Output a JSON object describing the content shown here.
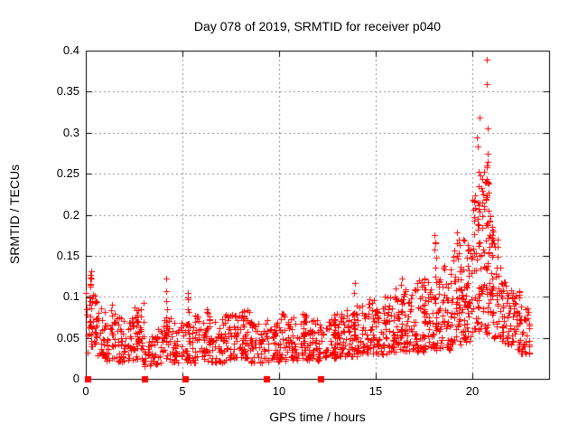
{
  "figure": {
    "title": "Day 078 of 2019, SRMTID for receiver p040",
    "xlabel": "GPS time / hours",
    "ylabel": "SRMTID / TECUs"
  },
  "chart_data": {
    "type": "scatter",
    "title": "Day 078 of 2019, SRMTID for receiver p040",
    "xlabel": "GPS time / hours",
    "ylabel": "SRMTID / TECUs",
    "xlim": [
      0,
      24
    ],
    "ylim": [
      0,
      0.4
    ],
    "xticks": [
      0,
      5,
      10,
      15,
      20
    ],
    "xtick_labels": [
      "0",
      "5",
      "10",
      "15",
      "20"
    ],
    "yticks": [
      0,
      0.05,
      0.1,
      0.15,
      0.2,
      0.25,
      0.3,
      0.35,
      0.4
    ],
    "ytick_labels": [
      "0",
      "0.05",
      "0.1",
      "0.15",
      "0.2",
      "0.25",
      "0.3",
      "0.35",
      "0.4"
    ],
    "grid": true,
    "legend": "none",
    "background_color": "#ffffff",
    "axis_color": "#000000",
    "grid_color": "#8c8c8c",
    "marker": {
      "shape": "plus",
      "color": "#ff0000",
      "size": 7
    },
    "zero_marker": {
      "shape": "filled-square",
      "color": "#ff0000",
      "size": 7
    },
    "seed": 2019078,
    "zero_points": [
      0.09,
      3.04,
      5.14,
      9.35,
      12.15
    ],
    "band_bins": [
      [
        0.0,
        25,
        0.03,
        0.105
      ],
      [
        0.5,
        30,
        0.025,
        0.095
      ],
      [
        1.0,
        28,
        0.022,
        0.07
      ],
      [
        1.5,
        30,
        0.02,
        0.08
      ],
      [
        2.0,
        30,
        0.022,
        0.075
      ],
      [
        2.5,
        32,
        0.02,
        0.095
      ],
      [
        3.0,
        25,
        0.015,
        0.06
      ],
      [
        3.5,
        25,
        0.018,
        0.065
      ],
      [
        4.0,
        28,
        0.02,
        0.075
      ],
      [
        4.5,
        26,
        0.02,
        0.07
      ],
      [
        5.0,
        26,
        0.018,
        0.07
      ],
      [
        5.5,
        28,
        0.02,
        0.08
      ],
      [
        6.0,
        30,
        0.022,
        0.085
      ],
      [
        6.5,
        28,
        0.02,
        0.075
      ],
      [
        7.0,
        30,
        0.02,
        0.08
      ],
      [
        7.5,
        30,
        0.022,
        0.08
      ],
      [
        8.0,
        32,
        0.022,
        0.09
      ],
      [
        8.5,
        28,
        0.02,
        0.07
      ],
      [
        9.0,
        28,
        0.02,
        0.075
      ],
      [
        9.5,
        28,
        0.02,
        0.07
      ],
      [
        10.0,
        30,
        0.022,
        0.08
      ],
      [
        10.5,
        30,
        0.022,
        0.075
      ],
      [
        11.0,
        30,
        0.022,
        0.08
      ],
      [
        11.5,
        30,
        0.022,
        0.075
      ],
      [
        12.0,
        30,
        0.022,
        0.07
      ],
      [
        12.5,
        32,
        0.025,
        0.08
      ],
      [
        13.0,
        32,
        0.025,
        0.08
      ],
      [
        13.5,
        32,
        0.025,
        0.085
      ],
      [
        14.0,
        34,
        0.028,
        0.09
      ],
      [
        14.5,
        34,
        0.03,
        0.1
      ],
      [
        15.0,
        34,
        0.03,
        0.095
      ],
      [
        15.5,
        36,
        0.03,
        0.1
      ],
      [
        16.0,
        36,
        0.032,
        0.115
      ],
      [
        16.5,
        36,
        0.032,
        0.11
      ],
      [
        17.0,
        38,
        0.032,
        0.12
      ],
      [
        17.5,
        38,
        0.035,
        0.13
      ],
      [
        18.0,
        38,
        0.035,
        0.125
      ],
      [
        18.5,
        38,
        0.035,
        0.14
      ],
      [
        19.0,
        38,
        0.04,
        0.175
      ],
      [
        19.5,
        40,
        0.045,
        0.17
      ],
      [
        20.0,
        42,
        0.05,
        0.23
      ],
      [
        20.5,
        44,
        0.055,
        0.26
      ],
      [
        21.0,
        40,
        0.05,
        0.185
      ],
      [
        21.5,
        38,
        0.04,
        0.12
      ],
      [
        22.0,
        38,
        0.035,
        0.11
      ],
      [
        22.5,
        36,
        0.03,
        0.09
      ]
    ],
    "clusters": [
      [
        0.25,
        0.08,
        10,
        0.06,
        0.132
      ],
      [
        0.55,
        0.06,
        8,
        0.05,
        0.105
      ],
      [
        1.35,
        0.05,
        7,
        0.05,
        0.095
      ],
      [
        2.65,
        0.1,
        12,
        0.04,
        0.1
      ],
      [
        4.2,
        0.06,
        9,
        0.04,
        0.122
      ],
      [
        5.3,
        0.05,
        7,
        0.04,
        0.105
      ],
      [
        6.4,
        0.06,
        8,
        0.04,
        0.092
      ],
      [
        8.2,
        0.06,
        8,
        0.04,
        0.09
      ],
      [
        11.3,
        0.06,
        8,
        0.04,
        0.085
      ],
      [
        12.9,
        0.05,
        7,
        0.04,
        0.085
      ],
      [
        13.9,
        0.06,
        8,
        0.05,
        0.117
      ],
      [
        16.35,
        0.07,
        9,
        0.05,
        0.125
      ],
      [
        17.55,
        0.07,
        9,
        0.05,
        0.135
      ],
      [
        18.1,
        0.06,
        8,
        0.06,
        0.178
      ],
      [
        19.3,
        0.07,
        9,
        0.06,
        0.18
      ],
      [
        19.8,
        0.08,
        12,
        0.05,
        0.17
      ],
      [
        20.35,
        0.08,
        14,
        0.06,
        0.25
      ],
      [
        20.8,
        0.08,
        16,
        0.06,
        0.27
      ],
      [
        21.05,
        0.06,
        10,
        0.06,
        0.185
      ]
    ],
    "outliers": [
      [
        20.75,
        0.389
      ],
      [
        20.79,
        0.359
      ],
      [
        20.4,
        0.318
      ],
      [
        20.84,
        0.305
      ],
      [
        20.28,
        0.294
      ],
      [
        20.3,
        0.283
      ],
      [
        20.84,
        0.274
      ],
      [
        20.84,
        0.265
      ],
      [
        20.35,
        0.252
      ],
      [
        20.45,
        0.248
      ],
      [
        20.55,
        0.244
      ],
      [
        20.62,
        0.252
      ],
      [
        20.7,
        0.24
      ],
      [
        20.5,
        0.232
      ],
      [
        20.58,
        0.225
      ],
      [
        20.75,
        0.222
      ],
      [
        20.4,
        0.215
      ],
      [
        20.65,
        0.21
      ],
      [
        20.85,
        0.205
      ],
      [
        20.55,
        0.198
      ],
      [
        20.3,
        0.195
      ],
      [
        20.9,
        0.192
      ],
      [
        0.28,
        0.131
      ],
      [
        0.3,
        0.122
      ],
      [
        0.25,
        0.112
      ],
      [
        4.18,
        0.122
      ],
      [
        13.92,
        0.117
      ],
      [
        19.25,
        0.178
      ],
      [
        19.3,
        0.17
      ],
      [
        19.35,
        0.163
      ],
      [
        18.08,
        0.175
      ],
      [
        18.1,
        0.165
      ],
      [
        18.05,
        0.158
      ],
      [
        21.1,
        0.18
      ],
      [
        21.05,
        0.172
      ],
      [
        21.15,
        0.165
      ]
    ]
  }
}
